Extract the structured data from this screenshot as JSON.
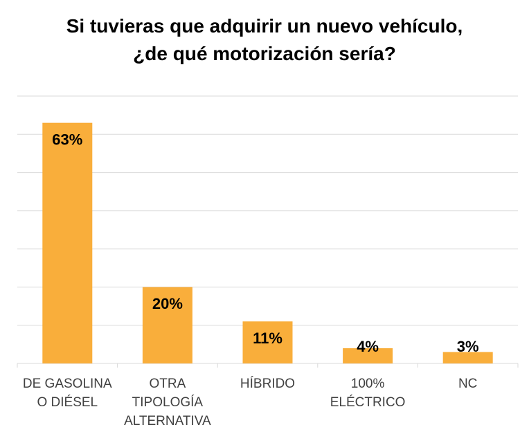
{
  "chart_data": {
    "type": "bar",
    "title": "Si tuvieras que adquirir un nuevo vehículo, ¿de qué motorización sería?",
    "categories": [
      "DE GASOLINA O DIÉSEL",
      "OTRA TIPOLOGÍA ALTERNATIVA",
      "HÍBRIDO",
      "100% ELÉCTRICO",
      "NC"
    ],
    "values": [
      63,
      20,
      11,
      4,
      3
    ],
    "value_labels": [
      "63%",
      "20%",
      "11%",
      "4%",
      "3%"
    ],
    "color": "#f9ae3b",
    "ylim": [
      0,
      70
    ],
    "yticks": [
      0,
      10,
      20,
      30,
      40,
      50,
      60,
      70
    ],
    "grid": true
  }
}
